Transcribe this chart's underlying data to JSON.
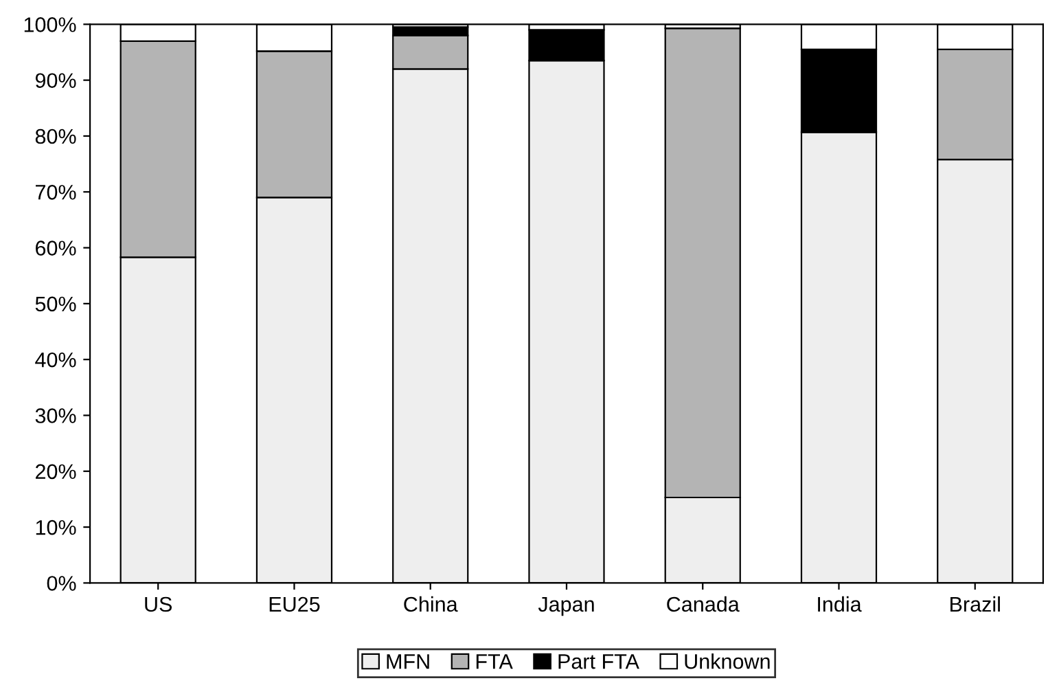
{
  "chart_data": {
    "type": "bar",
    "stacked": true,
    "categories": [
      "US",
      "EU25",
      "China",
      "Japan",
      "Canada",
      "India",
      "Brazil"
    ],
    "series": [
      {
        "name": "MFN",
        "color": "#eeeeee",
        "values": [
          58.3,
          69,
          92,
          93.5,
          15.3,
          80.7,
          75.8
        ]
      },
      {
        "name": "FTA",
        "color": "#b4b4b4",
        "values": [
          38.7,
          26.2,
          6,
          0,
          84,
          0,
          19.7
        ]
      },
      {
        "name": "Part FTA",
        "color": "#000000",
        "values": [
          0,
          0,
          1.5,
          5.5,
          0,
          14.8,
          0
        ]
      },
      {
        "name": "Unknown",
        "color": "#ffffff",
        "values": [
          3,
          4.8,
          0.5,
          1,
          0.7,
          4.5,
          4.5
        ]
      }
    ],
    "ylim": [
      0,
      100
    ],
    "yticks": [
      {
        "value": 0,
        "label": "0%"
      },
      {
        "value": 10,
        "label": "10%"
      },
      {
        "value": 20,
        "label": "20%"
      },
      {
        "value": 30,
        "label": "30%"
      },
      {
        "value": 40,
        "label": "40%"
      },
      {
        "value": 50,
        "label": "50%"
      },
      {
        "value": 60,
        "label": "60%"
      },
      {
        "value": 70,
        "label": "70%"
      },
      {
        "value": 80,
        "label": "80%"
      },
      {
        "value": 90,
        "label": "90%"
      },
      {
        "value": 100,
        "label": "100%"
      }
    ],
    "grid": false,
    "legend": "bottom"
  }
}
